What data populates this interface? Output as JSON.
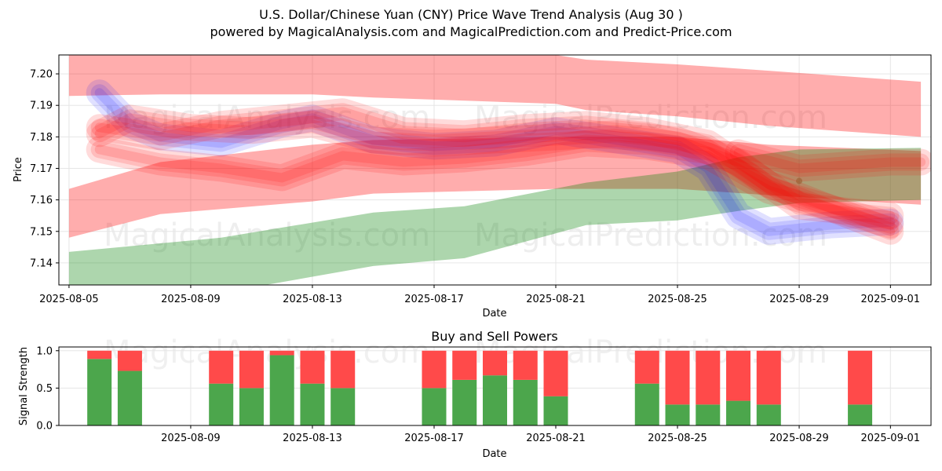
{
  "title": "U.S. Dollar/Chinese Yuan (CNY) Price Wave Trend Analysis (Aug 30 )",
  "subtitle": "powered by MagicalAnalysis.com and MagicalPrediction.com and Predict-Price.com",
  "watermarks": [
    "MagicalAnalysis.com",
    "MagicalPrediction.com"
  ],
  "colors": {
    "red": "#ff0000",
    "blue": "#0000ff",
    "green": "#008000",
    "brown": "#8b4513",
    "buy": "#4ca64c",
    "sell": "#ff4a4a"
  },
  "chart_data": [
    {
      "type": "area",
      "xlabel": "Date",
      "ylabel": "Price",
      "ylim": [
        7.133,
        7.206
      ],
      "xlim": [
        "2025-08-04T16:00",
        "2025-09-02T08:00"
      ],
      "x_ticks": [
        "2025-08-05",
        "2025-08-09",
        "2025-08-13",
        "2025-08-17",
        "2025-08-21",
        "2025-08-25",
        "2025-08-29",
        "2025-09-01"
      ],
      "y_ticks": [
        "7.14",
        "7.15",
        "7.16",
        "7.17",
        "7.18",
        "7.19",
        "7.20"
      ],
      "grid": true,
      "bands": [
        {
          "name": "",
          "color": "red",
          "opacity": 0.32,
          "x": [
            "2025-08-05",
            "2025-08-08",
            "2025-08-13",
            "2025-08-15",
            "2025-08-21",
            "2025-08-22",
            "2025-08-25",
            "2025-08-28",
            "2025-09-02"
          ],
          "upper": [
            7.213,
            7.212,
            7.211,
            7.209,
            7.206,
            7.2045,
            7.203,
            7.201,
            7.1975
          ],
          "lower": [
            7.193,
            7.1935,
            7.1935,
            7.1925,
            7.1905,
            7.1885,
            7.1865,
            7.1835,
            7.18
          ]
        },
        {
          "name": "",
          "color": "red",
          "opacity": 0.32,
          "x": [
            "2025-08-05",
            "2025-08-08",
            "2025-08-13",
            "2025-08-15",
            "2025-08-21",
            "2025-08-25",
            "2025-08-28",
            "2025-09-02"
          ],
          "upper": [
            7.1635,
            7.172,
            7.1775,
            7.179,
            7.18,
            7.18,
            7.1775,
            7.1755
          ],
          "lower": [
            7.148,
            7.1555,
            7.1595,
            7.162,
            7.1635,
            7.1635,
            7.1615,
            7.1585
          ]
        },
        {
          "name": "",
          "color": "green",
          "opacity": 0.32,
          "x": [
            "2025-08-05",
            "2025-08-10",
            "2025-08-15",
            "2025-08-18",
            "2025-08-22",
            "2025-08-25",
            "2025-08-27",
            "2025-08-29",
            "2025-09-02"
          ],
          "upper": [
            7.1435,
            7.148,
            7.156,
            7.158,
            7.1655,
            7.169,
            7.1735,
            7.176,
            7.1765
          ],
          "lower": [
            7.127,
            7.1305,
            7.139,
            7.1415,
            7.152,
            7.1535,
            7.1565,
            7.159,
            7.16
          ]
        }
      ],
      "wave_series": [
        {
          "name": "",
          "color": "blue",
          "x": [
            "2025-08-06",
            "2025-08-07",
            "2025-08-08",
            "2025-08-10",
            "2025-08-12",
            "2025-08-13",
            "2025-08-15",
            "2025-08-17",
            "2025-08-19",
            "2025-08-21",
            "2025-08-23",
            "2025-08-25",
            "2025-08-26",
            "2025-08-27",
            "2025-08-28",
            "2025-08-30",
            "2025-09-01"
          ],
          "values": [
            7.194,
            7.184,
            7.18,
            7.178,
            7.184,
            7.186,
            7.179,
            7.177,
            7.178,
            7.182,
            7.179,
            7.176,
            7.17,
            7.155,
            7.15,
            7.152,
            7.153
          ]
        },
        {
          "name": "",
          "color": "red",
          "x": [
            "2025-08-06",
            "2025-08-07",
            "2025-08-09",
            "2025-08-11",
            "2025-08-13",
            "2025-08-15",
            "2025-08-17",
            "2025-08-19",
            "2025-08-21",
            "2025-08-23",
            "2025-08-25",
            "2025-08-27",
            "2025-08-29",
            "2025-09-01"
          ],
          "values": [
            7.181,
            7.186,
            7.183,
            7.182,
            7.184,
            7.179,
            7.178,
            7.179,
            7.18,
            7.181,
            7.179,
            7.172,
            7.158,
            7.155
          ]
        },
        {
          "name": "",
          "color": "red",
          "x": [
            "2025-08-06",
            "2025-08-08",
            "2025-08-10",
            "2025-08-12",
            "2025-08-14",
            "2025-08-16",
            "2025-08-18",
            "2025-08-20",
            "2025-08-22",
            "2025-08-24",
            "2025-08-26",
            "2025-08-28",
            "2025-09-01"
          ],
          "values": [
            7.176,
            7.172,
            7.17,
            7.167,
            7.174,
            7.172,
            7.173,
            7.175,
            7.178,
            7.177,
            7.174,
            7.163,
            7.152
          ]
        },
        {
          "name": "",
          "color": "red",
          "x": [
            "2025-08-06",
            "2025-08-08",
            "2025-08-10",
            "2025-08-12",
            "2025-08-14",
            "2025-08-16",
            "2025-08-18",
            "2025-08-20",
            "2025-08-22",
            "2025-08-24",
            "2025-08-26",
            "2025-08-28",
            "2025-09-01"
          ],
          "values": [
            7.183,
            7.18,
            7.184,
            7.186,
            7.188,
            7.182,
            7.181,
            7.183,
            7.184,
            7.182,
            7.178,
            7.165,
            7.15
          ]
        },
        {
          "name": "",
          "color": "red",
          "x": [
            "2025-08-27",
            "2025-08-29",
            "2025-09-01",
            "2025-09-02"
          ],
          "values": [
            7.175,
            7.17,
            7.172,
            7.172
          ]
        }
      ],
      "wave_points": [
        {
          "name": "",
          "color": "brown",
          "x": "2025-08-29",
          "value": 7.166
        }
      ]
    },
    {
      "type": "bar",
      "title": "Buy and Sell Powers",
      "xlabel": "Date",
      "ylabel": "Signal Strength",
      "ylim": [
        0,
        1.05
      ],
      "xlim": [
        "2025-08-04T16:00",
        "2025-09-02T08:00"
      ],
      "x_ticks": [
        "2025-08-09",
        "2025-08-13",
        "2025-08-17",
        "2025-08-21",
        "2025-08-25",
        "2025-08-29",
        "2025-09-01"
      ],
      "y_ticks": [
        "0.0",
        "0.5",
        "1.0"
      ],
      "grid": true,
      "categories": [
        "2025-08-06",
        "2025-08-07",
        "2025-08-10",
        "2025-08-11",
        "2025-08-12",
        "2025-08-13",
        "2025-08-14",
        "2025-08-17",
        "2025-08-18",
        "2025-08-19",
        "2025-08-20",
        "2025-08-21",
        "2025-08-24",
        "2025-08-25",
        "2025-08-26",
        "2025-08-27",
        "2025-08-28",
        "2025-08-31"
      ],
      "series": [
        {
          "name": "",
          "color": "buy",
          "values": [
            0.89,
            0.73,
            0.56,
            0.5,
            0.94,
            0.56,
            0.5,
            0.5,
            0.61,
            0.67,
            0.61,
            0.39,
            0.56,
            0.28,
            0.28,
            0.33,
            0.28,
            0.28
          ]
        },
        {
          "name": "",
          "color": "sell",
          "values": [
            0.11,
            0.27,
            0.44,
            0.5,
            0.06,
            0.44,
            0.5,
            0.5,
            0.39,
            0.33,
            0.39,
            0.61,
            0.44,
            0.72,
            0.72,
            0.67,
            0.72,
            0.72
          ]
        }
      ]
    }
  ]
}
